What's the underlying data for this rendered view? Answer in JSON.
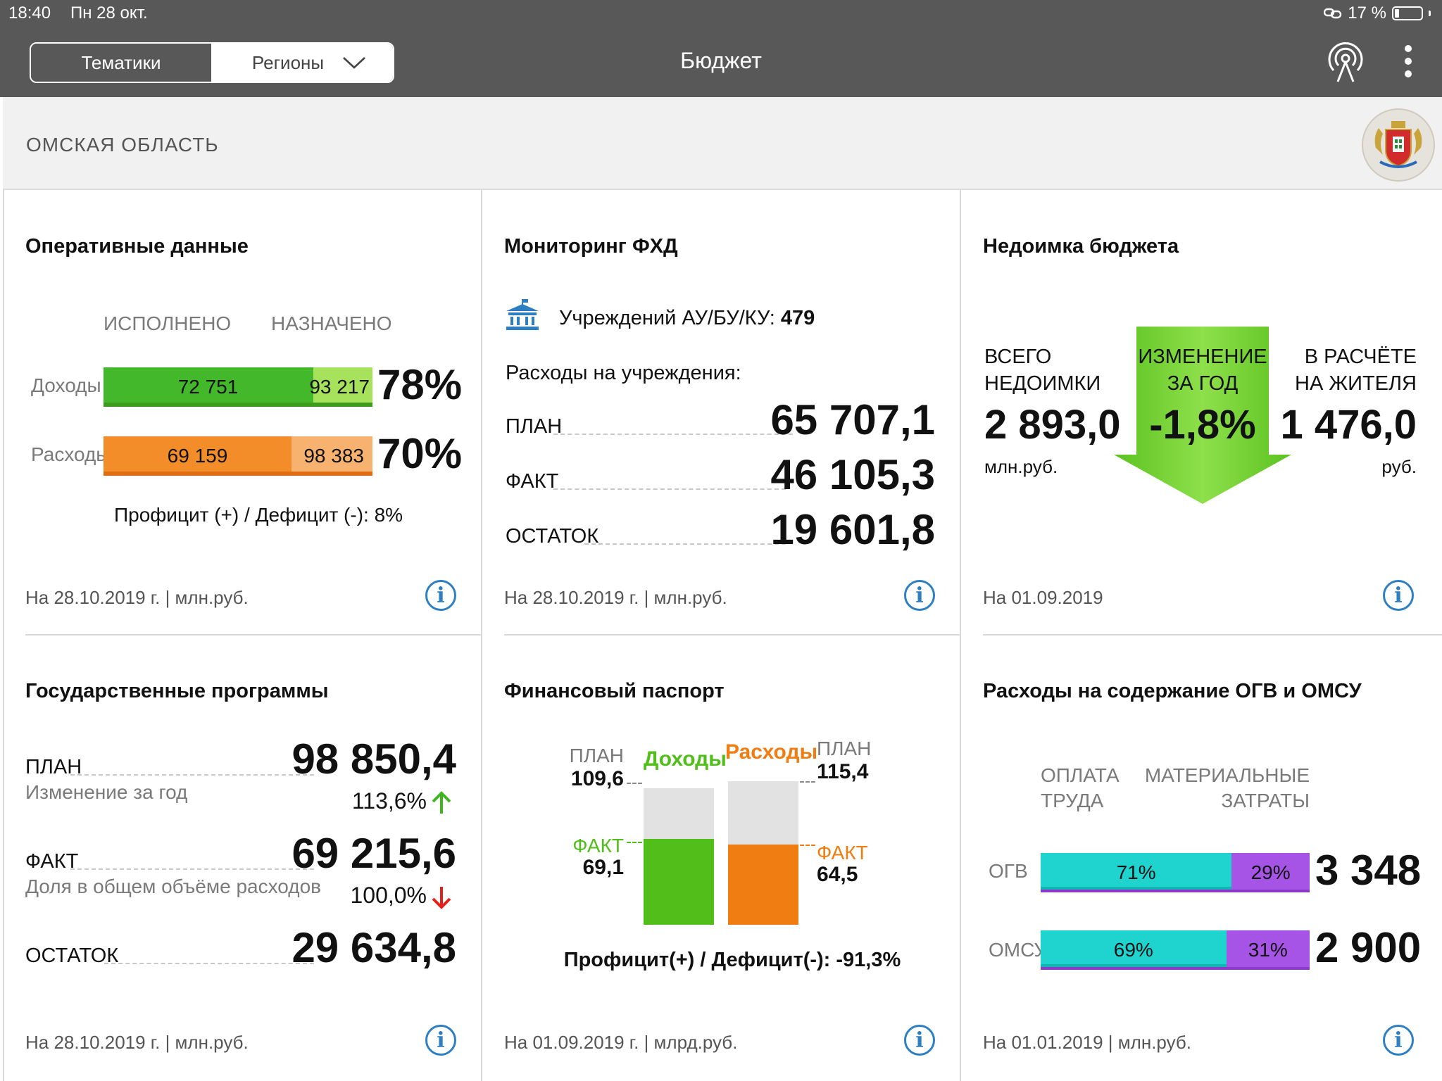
{
  "status": {
    "time": "18:40",
    "date": "Пн 28 окт.",
    "battery": "17 %"
  },
  "nav": {
    "tab_topics": "Тематики",
    "tab_regions": "Регионы",
    "title": "Бюджет"
  },
  "region": {
    "name": "ОМСКАЯ ОБЛАСТЬ"
  },
  "operational": {
    "title": "Оперативные данные",
    "col_done": "ИСПОЛНЕНО",
    "col_assigned": "НАЗНАЧЕНО",
    "income": {
      "label": "Доходы",
      "done": "72 751",
      "assigned": "93 217",
      "percent": "78%",
      "fraction": 0.78
    },
    "expense": {
      "label": "Расходы",
      "done": "69 159",
      "assigned": "98 383",
      "percent": "70%",
      "fraction": 0.7
    },
    "surplus": "Профицит (+) / Дефицит (-): 8%",
    "footer": "На 28.10.2019 г. | млн.руб."
  },
  "monitoring": {
    "title": "Мониторинг ФХД",
    "institutions_label": "Учреждений АУ/БУ/КУ:",
    "institutions_value": "479",
    "expenses_label": "Расходы на учреждения:",
    "plan_label": "ПЛАН",
    "plan_value": "65 707,1",
    "fact_label": "ФАКТ",
    "fact_value": "46 105,3",
    "rest_label": "ОСТАТОК",
    "rest_value": "19 601,8",
    "footer": "На 28.10.2019 г. | млн.руб."
  },
  "arrears": {
    "title": "Недоимка бюджета",
    "total_l1": "ВСЕГО",
    "total_l2": "НЕДОИМКИ",
    "total_value": "2 893,0",
    "total_unit": "млн.руб.",
    "change_l1": "ИЗМЕНЕНИЕ",
    "change_l2": "ЗА ГОД",
    "change_value": "-1,8%",
    "per_l1": "В РАСЧЁТЕ",
    "per_l2": "НА ЖИТЕЛЯ",
    "per_value": "1 476,0",
    "per_unit": "руб.",
    "footer": "На 01.09.2019"
  },
  "programs": {
    "title": "Государственные программы",
    "plan_label": "ПЛАН",
    "plan_value": "98 850,4",
    "change_label": "Изменение за год",
    "change_value": "113,6%",
    "fact_label": "ФАКТ",
    "fact_value": "69 215,6",
    "share_label": "Доля в общем объёме расходов",
    "share_value": "100,0%",
    "rest_label": "ОСТАТОК",
    "rest_value": "29 634,8",
    "footer": "На 28.10.2019 г. | млн.руб."
  },
  "passport": {
    "title": "Финансовый паспорт",
    "income_label": "Доходы",
    "expense_label": "Расходы",
    "plan_label": "ПЛАН",
    "fact_label": "ФАКТ",
    "income_plan": "109,6",
    "income_fact": "69,1",
    "income_fraction": 0.63,
    "expense_plan": "115,4",
    "expense_fact": "64,5",
    "expense_fraction": 0.56,
    "surplus": "Профицит(+) / Дефицит(-): -91,3%",
    "footer": "На 01.09.2019 г. | млрд.руб.",
    "colors": {
      "income": "#52be1a",
      "expense": "#f07d12",
      "empty": "#e2e2e2"
    }
  },
  "ogv": {
    "title": "Расходы на содержание ОГВ и ОМСУ",
    "col1_l1": "ОПЛАТА",
    "col1_l2": "ТРУДА",
    "col2_l1": "МАТЕРИАЛЬНЫЕ",
    "col2_l2": "ЗАТРАТЫ",
    "row1": {
      "label": "ОГВ",
      "p1": "71%",
      "p2": "29%",
      "value": "3 348",
      "fraction": 0.71
    },
    "row2": {
      "label": "ОМСУ",
      "p1": "69%",
      "p2": "31%",
      "value": "2 900",
      "fraction": 0.69
    },
    "footer": "На 01.01.2019 | млн.руб.",
    "colors": {
      "labor": "#1fd3cf",
      "material": "#a654e6"
    }
  }
}
